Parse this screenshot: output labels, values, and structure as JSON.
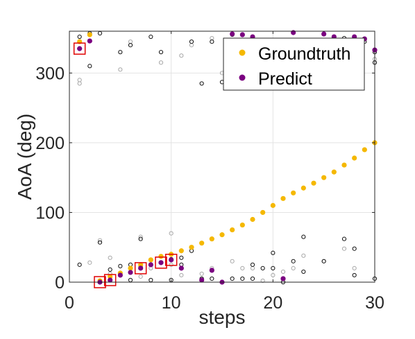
{
  "chart_data": {
    "type": "scatter",
    "title": "",
    "xlabel": "steps",
    "ylabel": "AoA (deg)",
    "xlim": [
      0,
      30
    ],
    "ylim": [
      0,
      360
    ],
    "xticks": [
      0,
      10,
      20,
      30
    ],
    "yticks": [
      0,
      100,
      200,
      300
    ],
    "grid": true,
    "legend_position": "top-right",
    "series": [
      {
        "name": "Groundtruth",
        "color": "#f5b800",
        "marker": "filled-circle",
        "x": [
          1,
          2,
          3,
          4,
          5,
          6,
          7,
          8,
          9,
          10,
          11,
          12,
          13,
          14,
          15,
          16,
          17,
          18,
          19,
          20,
          21,
          22,
          23,
          24,
          25,
          26,
          27,
          28,
          29,
          30
        ],
        "y": [
          345,
          355,
          2,
          8,
          13,
          20,
          25,
          32,
          37,
          40,
          45,
          50,
          56,
          62,
          68,
          75,
          82,
          90,
          100,
          110,
          120,
          128,
          135,
          142,
          150,
          158,
          168,
          178,
          190,
          200
        ]
      },
      {
        "name": "Predict",
        "color": "#7a0080",
        "marker": "filled-circle",
        "x": [
          1,
          2,
          3,
          4,
          5,
          6,
          7,
          8,
          9,
          10,
          11,
          13,
          14,
          15,
          16,
          17,
          18,
          21,
          22,
          25,
          26,
          28,
          29,
          30
        ],
        "y": [
          335,
          346,
          0,
          3,
          10,
          14,
          20,
          25,
          28,
          32,
          20,
          3,
          17,
          0,
          356,
          355,
          352,
          5,
          358,
          356,
          352,
          352,
          349,
          333
        ]
      },
      {
        "name": "",
        "color": "#111111",
        "marker": "open-circle",
        "x": [
          1,
          1,
          2,
          2,
          3,
          3,
          4,
          4,
          4,
          5,
          5,
          6,
          6,
          6,
          7,
          7,
          8,
          8,
          9,
          10,
          10,
          11,
          11,
          12,
          12,
          13,
          13,
          14,
          14,
          15,
          16,
          16,
          17,
          18,
          18,
          19,
          20,
          20,
          21,
          22,
          23,
          23,
          24,
          25,
          26,
          27,
          27,
          28,
          28,
          29,
          30,
          30,
          30
        ],
        "y": [
          352,
          25,
          357,
          310,
          357,
          57,
          18,
          8,
          3,
          330,
          23,
          340,
          25,
          3,
          62,
          22,
          352,
          3,
          330,
          33,
          3,
          35,
          25,
          345,
          45,
          285,
          5,
          345,
          5,
          287,
          5,
          355,
          5,
          25,
          5,
          20,
          20,
          42,
          0,
          30,
          65,
          15,
          310,
          30,
          350,
          62,
          350,
          48,
          10,
          345,
          5,
          330,
          315
        ]
      },
      {
        "name": "",
        "color": "#a8a8a8",
        "marker": "open-circle",
        "x": [
          1,
          1,
          2,
          3,
          4,
          4,
          5,
          6,
          7,
          7,
          8,
          9,
          10,
          10,
          11,
          11,
          12,
          12,
          13,
          14,
          14,
          15,
          16,
          16,
          17,
          18,
          19,
          20,
          21,
          22,
          23,
          24,
          25,
          26,
          27,
          28,
          29,
          30
        ],
        "y": [
          290,
          285,
          28,
          60,
          35,
          12,
          305,
          345,
          65,
          8,
          20,
          315,
          70,
          25,
          325,
          10,
          340,
          50,
          12,
          350,
          20,
          300,
          30,
          345,
          20,
          20,
          2,
          10,
          15,
          20,
          38,
          330,
          30,
          350,
          48,
          20,
          348,
          320
        ]
      }
    ]
  },
  "markers": {
    "highlight_color": "#e00000",
    "highlight_points": [
      {
        "x": 1,
        "y": 335
      },
      {
        "x": 3,
        "y": 0
      },
      {
        "x": 4,
        "y": 3
      },
      {
        "x": 7,
        "y": 20
      },
      {
        "x": 9,
        "y": 28
      },
      {
        "x": 10,
        "y": 32
      }
    ]
  }
}
